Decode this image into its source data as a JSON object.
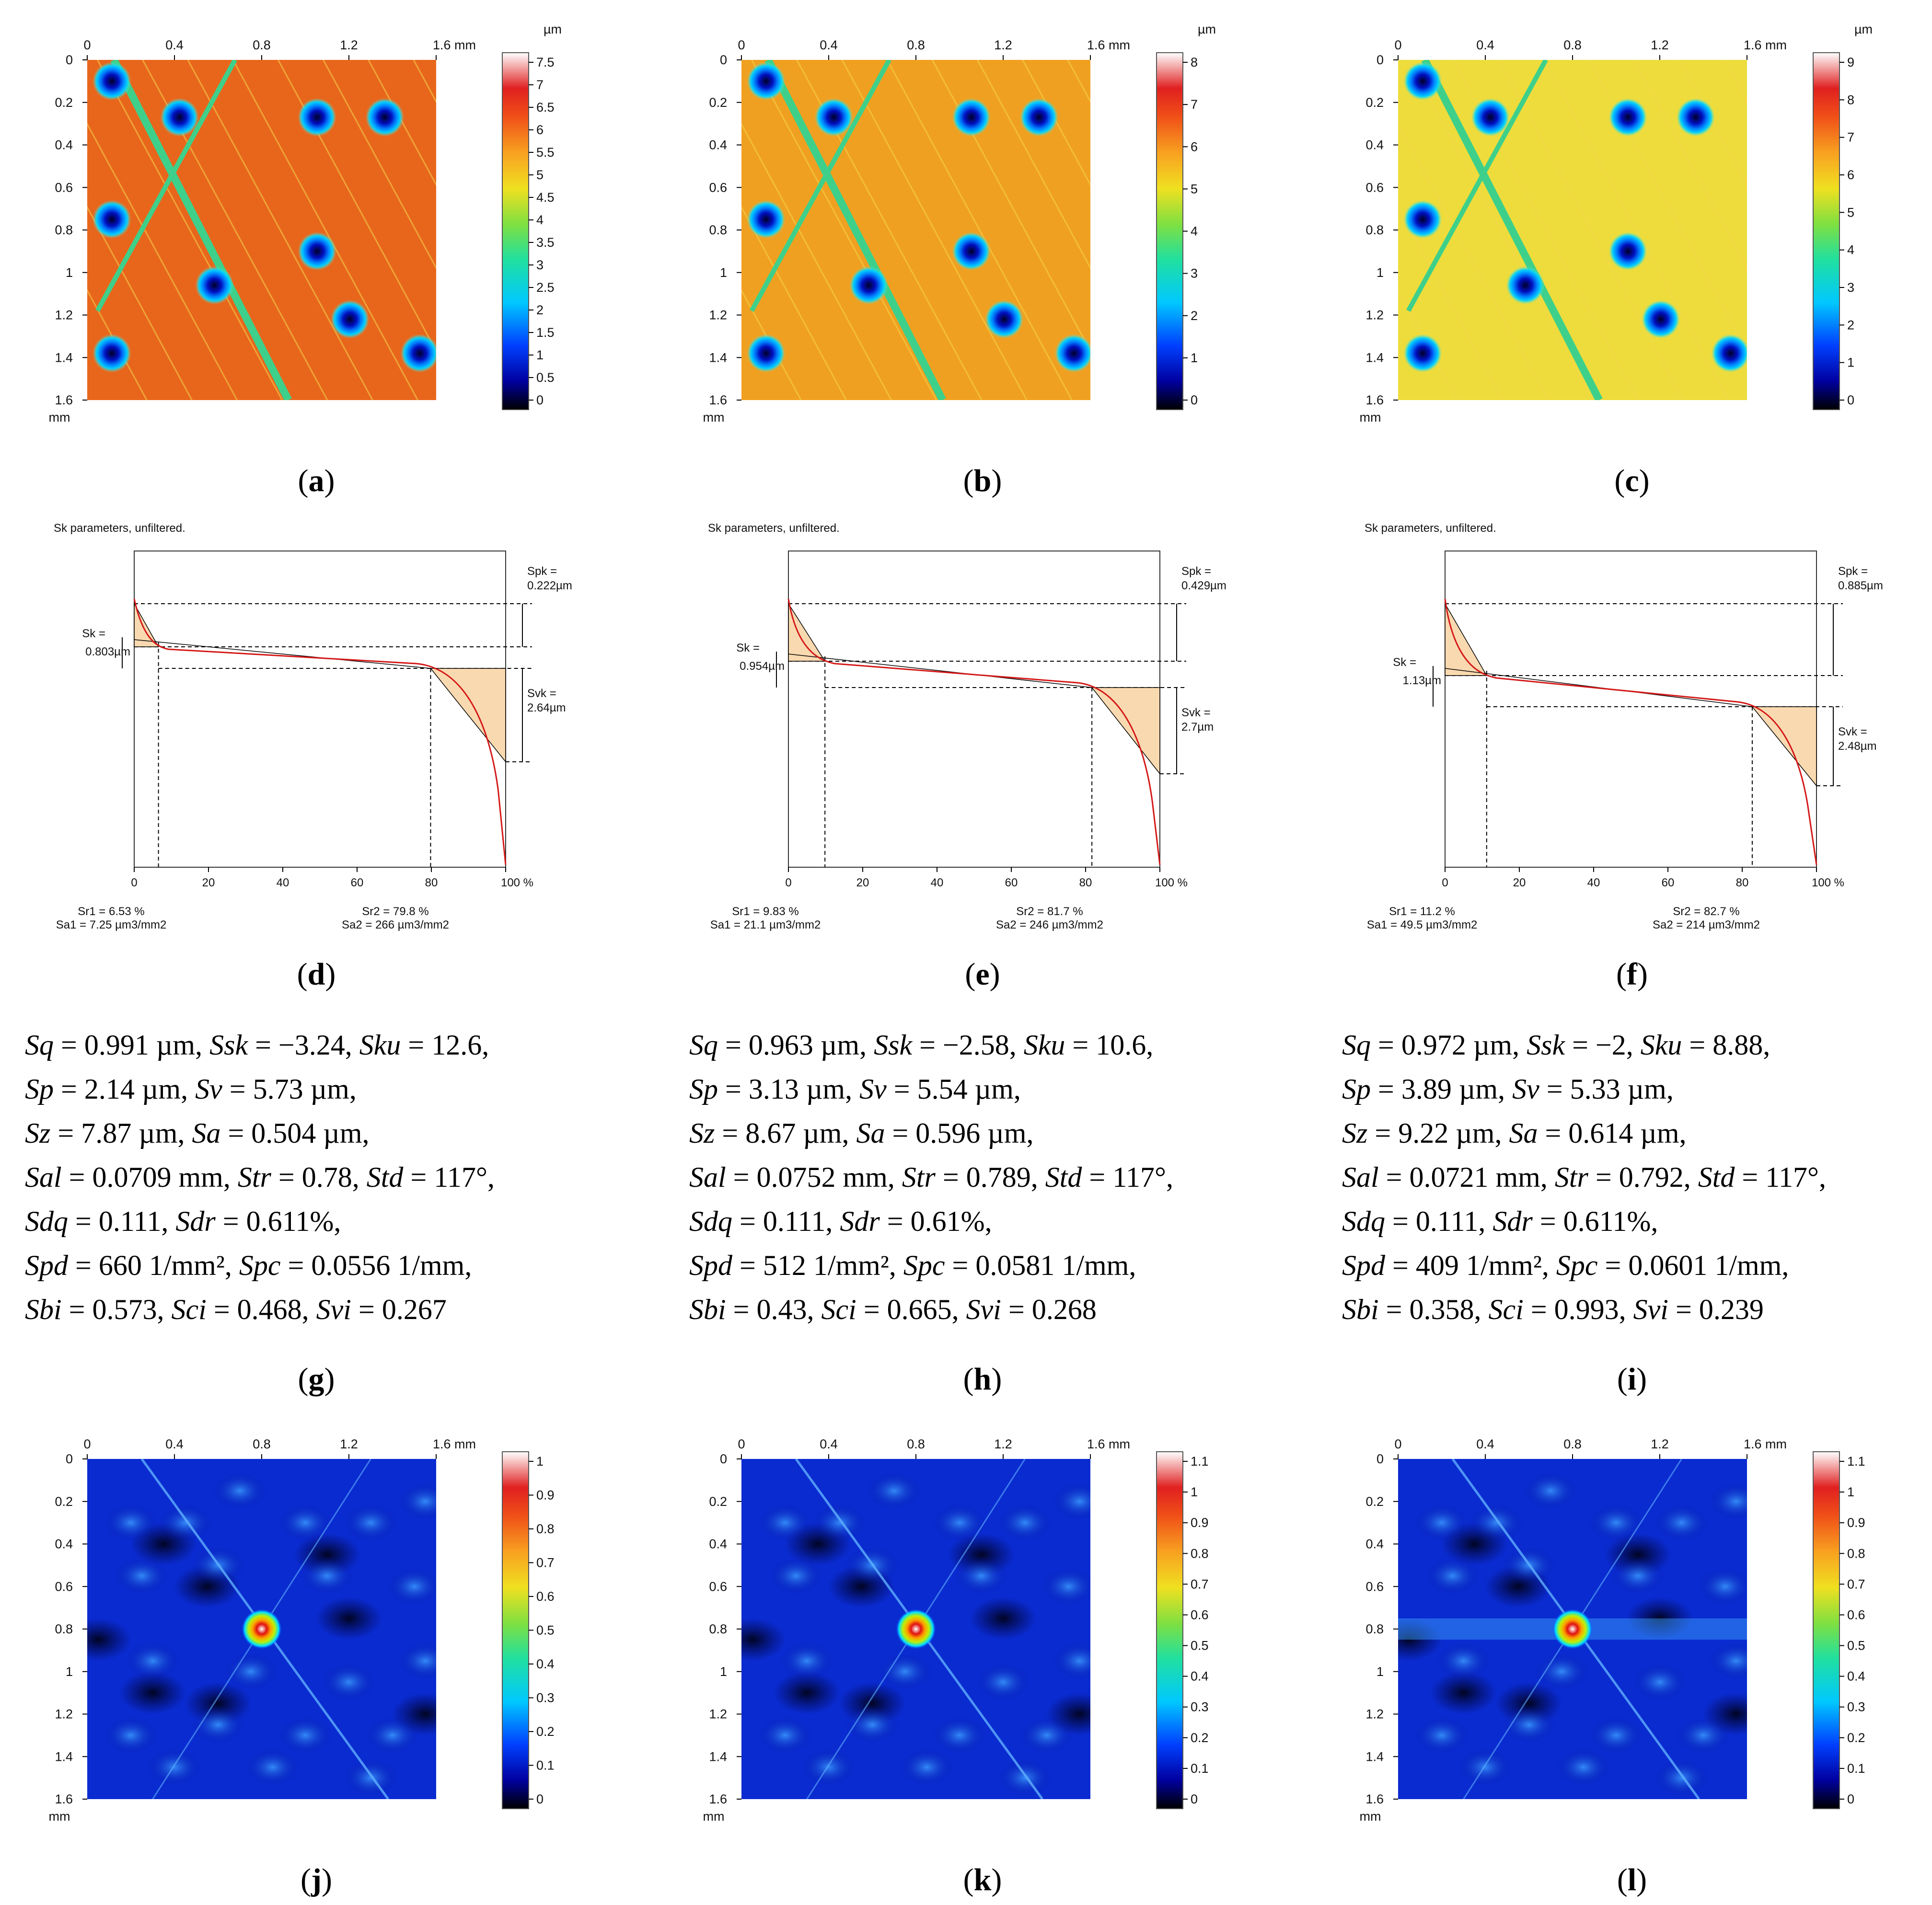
{
  "topography": {
    "x_ticks": [
      "0",
      "0.4",
      "0.8",
      "1.2",
      "1.6 mm"
    ],
    "y_ticks": [
      "0",
      "0.2",
      "0.4",
      "0.6",
      "0.8",
      "1",
      "1.2",
      "1.4",
      "1.6"
    ],
    "y_unit": "mm",
    "scale_unit": "µm",
    "panels": [
      {
        "caption": "a",
        "base_color": "#e8661c",
        "scale_ticks": [
          "7.5",
          "7",
          "6.5",
          "6",
          "5.5",
          "5",
          "4.5",
          "4",
          "3.5",
          "3",
          "2.5",
          "2",
          "1.5",
          "1",
          "0.5",
          "0"
        ]
      },
      {
        "caption": "b",
        "base_color": "#f0a020",
        "scale_ticks": [
          "8",
          "7",
          "6",
          "5",
          "4",
          "3",
          "2",
          "1",
          "0"
        ]
      },
      {
        "caption": "c",
        "base_color": "#eedc3c",
        "scale_ticks": [
          "9",
          "8",
          "7",
          "6",
          "5",
          "4",
          "3",
          "2",
          "1",
          "0"
        ]
      }
    ]
  },
  "sk_charts": {
    "title": "Sk parameters, unfiltered.",
    "x_ticks": [
      "0",
      "20",
      "40",
      "60",
      "80",
      "100 %"
    ],
    "chart_data": [
      {
        "type": "line",
        "caption": "d",
        "spk": "Spk =",
        "spk_val": "0.222µm",
        "sk": "Sk =",
        "sk_val": "0.803µm",
        "svk": "Svk =",
        "svk_val": "2.64µm",
        "sr1": "Sr1 = 6.53 %",
        "sa1": "Sa1 = 7.25 µm3/mm2",
        "sr2": "Sr2 = 79.8 %",
        "sa2": "Sa2 = 266 µm3/mm2",
        "sr1_value": 6.53,
        "sr2_value": 79.8
      },
      {
        "type": "line",
        "caption": "e",
        "spk": "Spk =",
        "spk_val": "0.429µm",
        "sk": "Sk =",
        "sk_val": "0.954µm",
        "svk": "Svk =",
        "svk_val": "2.7µm",
        "sr1": "Sr1 = 9.83 %",
        "sa1": "Sa1 = 21.1 µm3/mm2",
        "sr2": "Sr2 = 81.7 %",
        "sa2": "Sa2 = 246 µm3/mm2",
        "sr1_value": 9.83,
        "sr2_value": 81.7
      },
      {
        "type": "line",
        "caption": "f",
        "spk": "Spk =",
        "spk_val": "0.885µm",
        "sk": "Sk =",
        "sk_val": "1.13µm",
        "svk": "Svk =",
        "svk_val": "2.48µm",
        "sr1": "Sr1 = 11.2 %",
        "sa1": "Sa1 = 49.5 µm3/mm2",
        "sr2": "Sr2 = 82.7 %",
        "sa2": "Sa2 = 214 µm3/mm2",
        "sr1_value": 11.2,
        "sr2_value": 82.7
      }
    ]
  },
  "parameters": [
    {
      "caption": "g",
      "Sq": "0.991 µm",
      "Ssk": "−3.24",
      "Sku": "12.6",
      "Sp": "2.14 µm",
      "Sv": "5.73 µm",
      "Sz": "7.87 µm",
      "Sa": "0.504 µm",
      "Sal": "0.0709 mm",
      "Str": "0.78",
      "Std": "117°",
      "Sdq": "0.111",
      "Sdr": "0.611%",
      "Spd": "660 1/mm²",
      "Spc": "0.0556 1/mm",
      "Sbi": "0.573",
      "Sci": "0.468",
      "Svi": "0.267"
    },
    {
      "caption": "h",
      "Sq": "0.963 µm",
      "Ssk": "−2.58",
      "Sku": "10.6",
      "Sp": "3.13 µm",
      "Sv": "5.54 µm",
      "Sz": "8.67 µm",
      "Sa": "0.596 µm",
      "Sal": "0.0752 mm",
      "Str": "0.789",
      "Std": "117°",
      "Sdq": "0.111",
      "Sdr": "0.61%",
      "Spd": "512 1/mm²",
      "Spc": "0.0581 1/mm",
      "Sbi": "0.43",
      "Sci": "0.665",
      "Svi": "0.268"
    },
    {
      "caption": "i",
      "Sq": "0.972 µm",
      "Ssk": "−2",
      "Sku": "8.88",
      "Sp": "3.89 µm",
      "Sv": "5.33 µm",
      "Sz": "9.22 µm",
      "Sa": "0.614 µm",
      "Sal": "0.0721 mm",
      "Str": "0.792",
      "Std": "117°",
      "Sdq": "0.111",
      "Sdr": "0.611%",
      "Spd": "409 1/mm²",
      "Spc": "0.0601 1/mm",
      "Sbi": "0.358",
      "Sci": "0.993",
      "Svi": "0.239"
    }
  ],
  "autocorrelation": {
    "x_ticks": [
      "0",
      "0.4",
      "0.8",
      "1.2",
      "1.6 mm"
    ],
    "y_ticks": [
      "0",
      "0.2",
      "0.4",
      "0.6",
      "0.8",
      "1",
      "1.2",
      "1.4",
      "1.6"
    ],
    "y_unit": "mm",
    "panels": [
      {
        "caption": "j",
        "scale_ticks": [
          "1",
          "0.9",
          "0.8",
          "0.7",
          "0.6",
          "0.5",
          "0.4",
          "0.3",
          "0.2",
          "0.1",
          "0"
        ]
      },
      {
        "caption": "k",
        "scale_ticks": [
          "1.1",
          "1",
          "0.9",
          "0.8",
          "0.7",
          "0.6",
          "0.5",
          "0.4",
          "0.3",
          "0.2",
          "0.1",
          "0"
        ]
      },
      {
        "caption": "l",
        "scale_ticks": [
          "1.1",
          "1",
          "0.9",
          "0.8",
          "0.7",
          "0.6",
          "0.5",
          "0.4",
          "0.3",
          "0.2",
          "0.1",
          "0"
        ]
      }
    ]
  }
}
